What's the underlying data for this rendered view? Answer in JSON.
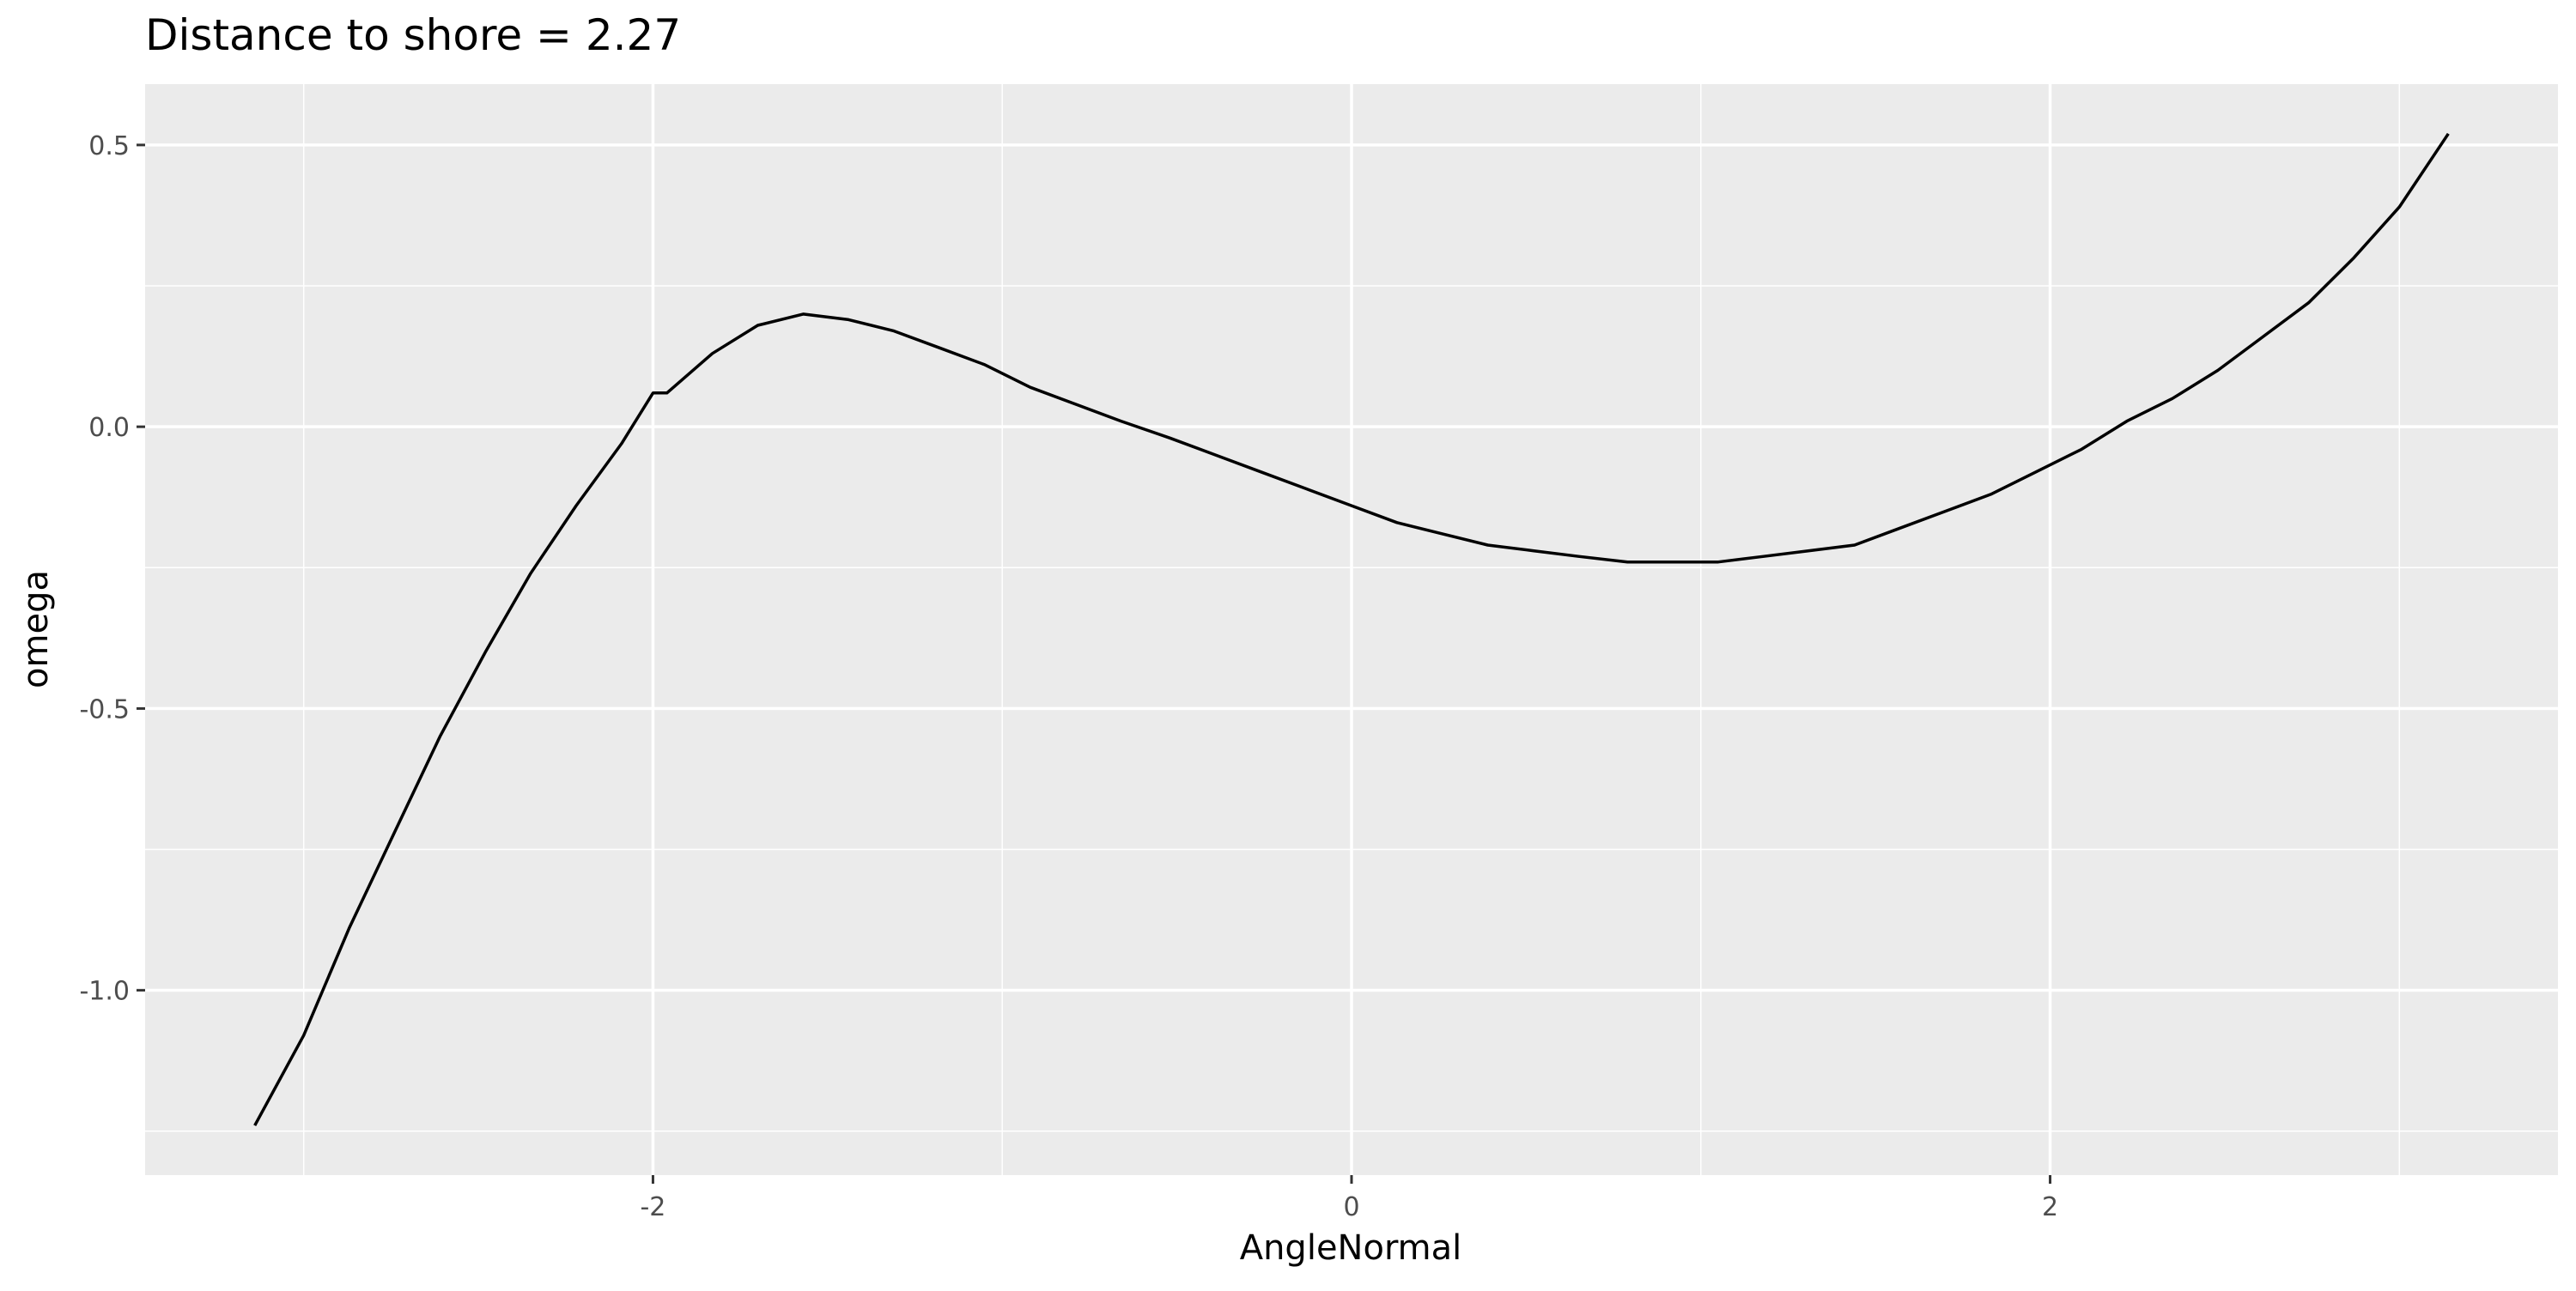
{
  "chart_data": {
    "type": "line",
    "title": "Distance to shore = 2.27",
    "xlabel": "AngleNormal",
    "ylabel": "omega",
    "xlim": [
      -3.14,
      3.14
    ],
    "ylim": [
      -1.24,
      0.52
    ],
    "x_ticks": [
      -2,
      0,
      2
    ],
    "x_tick_labels": [
      "-2",
      "0",
      "2"
    ],
    "y_ticks": [
      0.5,
      0.0,
      -0.5,
      -1.0
    ],
    "y_tick_labels": [
      "0.5",
      "0.0",
      "-0.5",
      "-1.0"
    ],
    "grid": true,
    "series": [
      {
        "x": [
          -3.14,
          -3.0,
          -2.87,
          -2.74,
          -2.61,
          -2.48,
          -2.35,
          -2.22,
          -2.09,
          -2.0,
          -1.96,
          -1.83,
          -1.7,
          -1.57,
          -1.44,
          -1.31,
          -1.18,
          -1.05,
          -0.92,
          -0.79,
          -0.66,
          -0.52,
          -0.39,
          -0.26,
          -0.13,
          0.0,
          0.13,
          0.26,
          0.39,
          0.52,
          0.65,
          0.79,
          0.92,
          1.05,
          1.18,
          1.31,
          1.44,
          1.57,
          1.7,
          1.83,
          1.96,
          2.09,
          2.22,
          2.35,
          2.48,
          2.61,
          2.74,
          2.87,
          3.0,
          3.14
        ],
        "y": [
          -1.24,
          -1.08,
          -0.89,
          -0.72,
          -0.55,
          -0.4,
          -0.26,
          -0.14,
          -0.03,
          0.06,
          0.06,
          0.13,
          0.18,
          0.2,
          0.19,
          0.17,
          0.14,
          0.11,
          0.07,
          0.04,
          0.01,
          -0.02,
          -0.05,
          -0.08,
          -0.11,
          -0.14,
          -0.17,
          -0.19,
          -0.21,
          -0.22,
          -0.23,
          -0.24,
          -0.24,
          -0.24,
          -0.23,
          -0.22,
          -0.21,
          -0.18,
          -0.15,
          -0.12,
          -0.08,
          -0.04,
          0.01,
          0.05,
          0.1,
          0.16,
          0.22,
          0.3,
          0.39,
          0.52
        ],
        "color": "#000000"
      }
    ]
  }
}
